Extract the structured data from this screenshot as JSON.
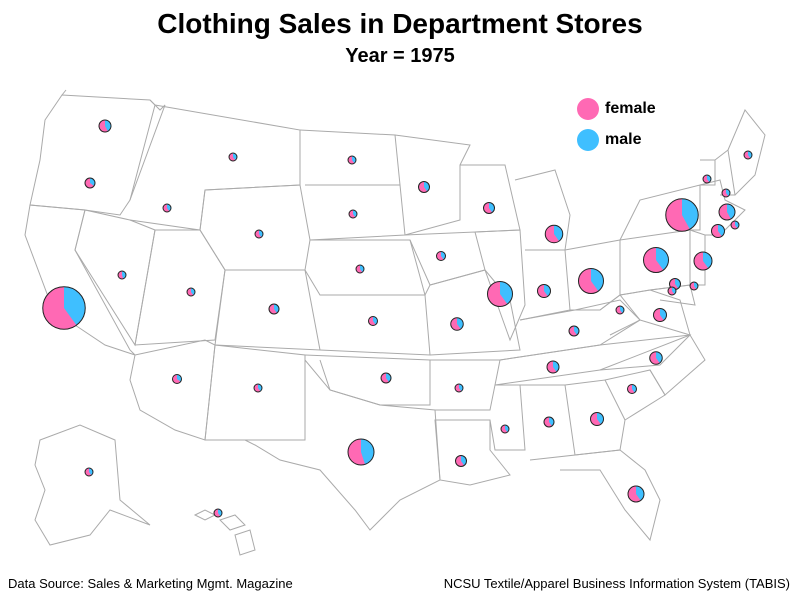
{
  "title": "Clothing Sales in Department Stores",
  "subtitle": "Year = 1975",
  "legend": [
    {
      "label": "female",
      "color": "#ff69b4"
    },
    {
      "label": "male",
      "color": "#3fbfff"
    }
  ],
  "footer": {
    "source": "Data Source: Sales & Marketing Mgmt. Magazine",
    "credit": "NCSU Textile/Apparel Business Information System (TABIS)"
  },
  "colors": {
    "female": "#ff69b4",
    "male": "#3fbfff",
    "border": "#aaaaaa",
    "pie_outline": "#222222"
  },
  "chart_data": {
    "type": "map-pie",
    "note_units": "relative sales size per state; male_share = fraction of pie that is male",
    "states": [
      {
        "state": "WA",
        "size": 2.4,
        "male_share": 0.42
      },
      {
        "state": "OR",
        "size": 2.0,
        "male_share": 0.35
      },
      {
        "state": "CA",
        "size": 8.5,
        "male_share": 0.4
      },
      {
        "state": "ID",
        "size": 1.2,
        "male_share": 0.4
      },
      {
        "state": "NV",
        "size": 1.2,
        "male_share": 0.45
      },
      {
        "state": "MT",
        "size": 1.2,
        "male_share": 0.4
      },
      {
        "state": "WY",
        "size": 0.8,
        "male_share": 0.4
      },
      {
        "state": "UT",
        "size": 1.4,
        "male_share": 0.4
      },
      {
        "state": "AZ",
        "size": 1.8,
        "male_share": 0.35
      },
      {
        "state": "CO",
        "size": 2.0,
        "male_share": 0.4
      },
      {
        "state": "NM",
        "size": 1.3,
        "male_share": 0.4
      },
      {
        "state": "ND",
        "size": 1.0,
        "male_share": 0.4
      },
      {
        "state": "SD",
        "size": 1.0,
        "male_share": 0.4
      },
      {
        "state": "NE",
        "size": 1.5,
        "male_share": 0.4
      },
      {
        "state": "KS",
        "size": 1.8,
        "male_share": 0.4
      },
      {
        "state": "OK",
        "size": 2.0,
        "male_share": 0.4
      },
      {
        "state": "TX",
        "size": 5.2,
        "male_share": 0.45
      },
      {
        "state": "MN",
        "size": 2.2,
        "male_share": 0.4
      },
      {
        "state": "IA",
        "size": 1.8,
        "male_share": 0.4
      },
      {
        "state": "MO",
        "size": 2.5,
        "male_share": 0.4
      },
      {
        "state": "AR",
        "size": 1.5,
        "male_share": 0.4
      },
      {
        "state": "LA",
        "size": 2.2,
        "male_share": 0.4
      },
      {
        "state": "WI",
        "size": 2.2,
        "male_share": 0.4
      },
      {
        "state": "IL",
        "size": 5.0,
        "male_share": 0.4
      },
      {
        "state": "MI",
        "size": 3.5,
        "male_share": 0.4
      },
      {
        "state": "IN",
        "size": 2.6,
        "male_share": 0.4
      },
      {
        "state": "OH",
        "size": 5.0,
        "male_share": 0.4
      },
      {
        "state": "KY",
        "size": 2.0,
        "male_share": 0.4
      },
      {
        "state": "TN",
        "size": 2.4,
        "male_share": 0.4
      },
      {
        "state": "MS",
        "size": 1.5,
        "male_share": 0.4
      },
      {
        "state": "AL",
        "size": 2.0,
        "male_share": 0.4
      },
      {
        "state": "GA",
        "size": 2.6,
        "male_share": 0.4
      },
      {
        "state": "FL",
        "size": 3.2,
        "male_share": 0.4
      },
      {
        "state": "SC",
        "size": 1.8,
        "male_share": 0.4
      },
      {
        "state": "NC",
        "size": 2.5,
        "male_share": 0.4
      },
      {
        "state": "VA",
        "size": 2.6,
        "male_share": 0.4
      },
      {
        "state": "WV",
        "size": 1.6,
        "male_share": 0.4
      },
      {
        "state": "PA",
        "size": 5.0,
        "male_share": 0.4
      },
      {
        "state": "NY",
        "size": 6.5,
        "male_share": 0.42
      },
      {
        "state": "NJ",
        "size": 3.6,
        "male_share": 0.4
      },
      {
        "state": "MD",
        "size": 2.2,
        "male_share": 0.4
      },
      {
        "state": "DE",
        "size": 1.4,
        "male_share": 0.4
      },
      {
        "state": "DC",
        "size": 1.3,
        "male_share": 0.4
      },
      {
        "state": "CT",
        "size": 2.6,
        "male_share": 0.4
      },
      {
        "state": "RI",
        "size": 1.6,
        "male_share": 0.4
      },
      {
        "state": "MA",
        "size": 3.2,
        "male_share": 0.42
      },
      {
        "state": "VT",
        "size": 1.0,
        "male_share": 0.4
      },
      {
        "state": "NH",
        "size": 1.3,
        "male_share": 0.4
      },
      {
        "state": "ME",
        "size": 1.3,
        "male_share": 0.4
      },
      {
        "state": "AK",
        "size": 0.9,
        "male_share": 0.4
      },
      {
        "state": "HI",
        "size": 1.4,
        "male_share": 0.4
      }
    ]
  }
}
